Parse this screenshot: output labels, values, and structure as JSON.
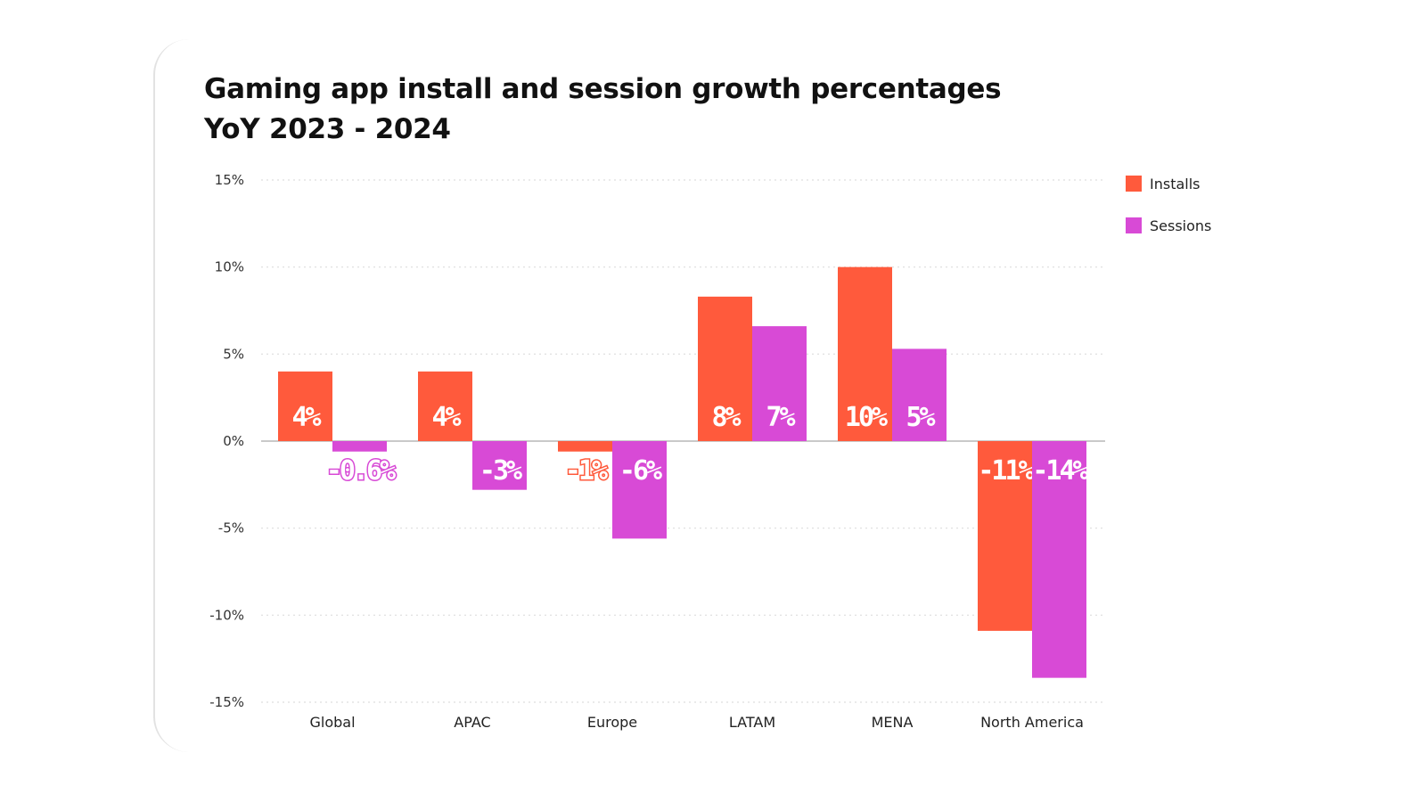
{
  "chart_data": {
    "type": "bar",
    "title_lines": [
      "Gaming app install and session growth percentages",
      "YoY 2023 - 2024"
    ],
    "categories": [
      "Global",
      "APAC",
      "Europe",
      "LATAM",
      "MENA",
      "North America"
    ],
    "series": [
      {
        "name": "Installs",
        "color": "#ff5a3c",
        "values": [
          4,
          4,
          -0.6,
          8.3,
          10,
          -10.9
        ],
        "labels": [
          "4%",
          "4%",
          "-1%",
          "8%",
          "10%",
          "-11%"
        ]
      },
      {
        "name": "Sessions",
        "color": "#d84ad6",
        "values": [
          -0.6,
          -2.8,
          -5.6,
          6.6,
          5.3,
          -13.6
        ],
        "labels": [
          "-0.6%",
          "-3%",
          "-6%",
          "7%",
          "5%",
          "-14%"
        ]
      }
    ],
    "y_ticks": [
      15,
      10,
      5,
      0,
      -5,
      -10,
      -15
    ],
    "y_tick_labels": [
      "15%",
      "10%",
      "5%",
      "0%",
      "-5%",
      "-10%",
      "-15%"
    ],
    "ylim": [
      -15,
      15
    ],
    "grid": true,
    "legend_position": "top-right"
  }
}
